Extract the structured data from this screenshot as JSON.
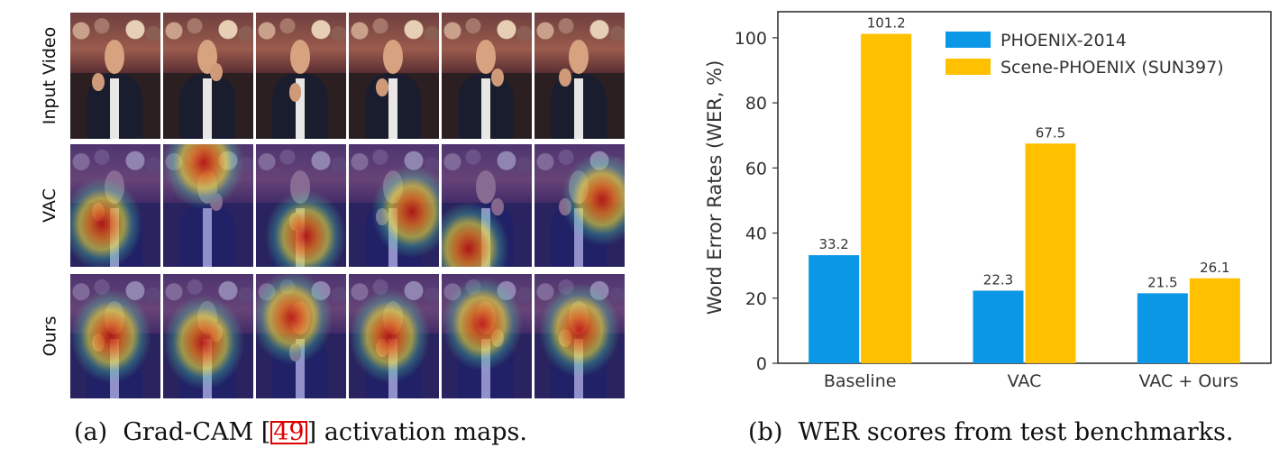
{
  "panel_a": {
    "row_labels": [
      "Input Video",
      "VAC",
      "Ours"
    ],
    "frames_per_row": 6,
    "caption_prefix": "(a)",
    "caption_text_before": "Grad-CAM [",
    "caption_ref": "49",
    "caption_text_after": "] activation maps."
  },
  "panel_b": {
    "caption_prefix": "(b)",
    "caption_text": "WER scores from test benchmarks."
  },
  "colors": {
    "phoenix": "#0a97e6",
    "scene": "#ffc000",
    "axis": "#333333",
    "ref_box": "#e00000"
  },
  "chart_data": {
    "type": "bar",
    "categories": [
      "Baseline",
      "VAC",
      "VAC + Ours"
    ],
    "series": [
      {
        "name": "PHOENIX-2014",
        "values": [
          33.2,
          22.3,
          21.5
        ],
        "labels": [
          "33.2",
          "22.3",
          "21.5"
        ]
      },
      {
        "name": "Scene-PHOENIX (SUN397)",
        "values": [
          101.2,
          67.5,
          26.1
        ],
        "labels": [
          "101.2",
          "67.5",
          "26.1"
        ]
      }
    ],
    "ylabel": "Word Error Rates (WER, %)",
    "xlabel": "",
    "ylim": [
      0,
      108
    ],
    "yticks": [
      0,
      20,
      40,
      60,
      80,
      100
    ],
    "grid": false,
    "legend_position": "top-right"
  }
}
